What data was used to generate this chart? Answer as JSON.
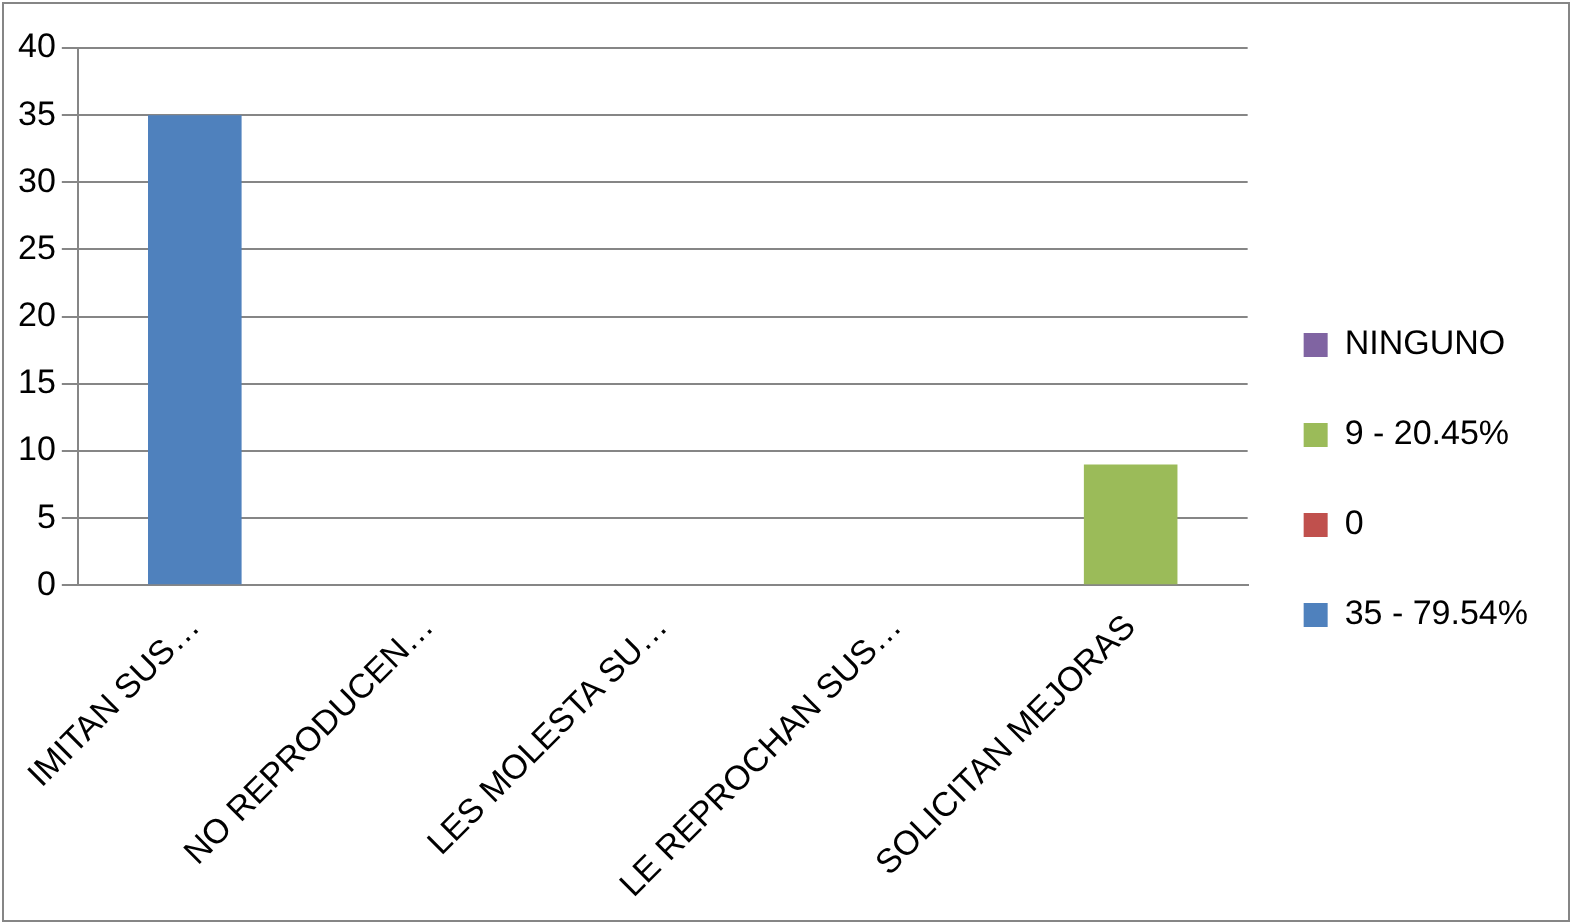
{
  "chart_data": {
    "type": "bar",
    "stacked": true,
    "categories": [
      "IMITAN SUS…",
      "NO REPRODUCEN…",
      "LES MOLESTA SU…",
      "LE REPROCHAN SUS…",
      "SOLICITAN MEJORAS"
    ],
    "series": [
      {
        "name": "35 - 79.54%",
        "color": "#4f81bd",
        "values": [
          35,
          null,
          null,
          null,
          null
        ]
      },
      {
        "name": "0",
        "color": "#c0504d",
        "values": [
          null,
          null,
          null,
          null,
          null
        ]
      },
      {
        "name": "9 - 20.45%",
        "color": "#9bbb59",
        "values": [
          null,
          null,
          null,
          null,
          9
        ]
      },
      {
        "name": "NINGUNO",
        "color": "#8064a2",
        "values": [
          null,
          null,
          null,
          null,
          null
        ]
      }
    ],
    "ylim": [
      0,
      40
    ],
    "yticks": [
      0,
      5,
      10,
      15,
      20,
      25,
      30,
      35,
      40
    ],
    "grid": "y",
    "legend": "right"
  }
}
